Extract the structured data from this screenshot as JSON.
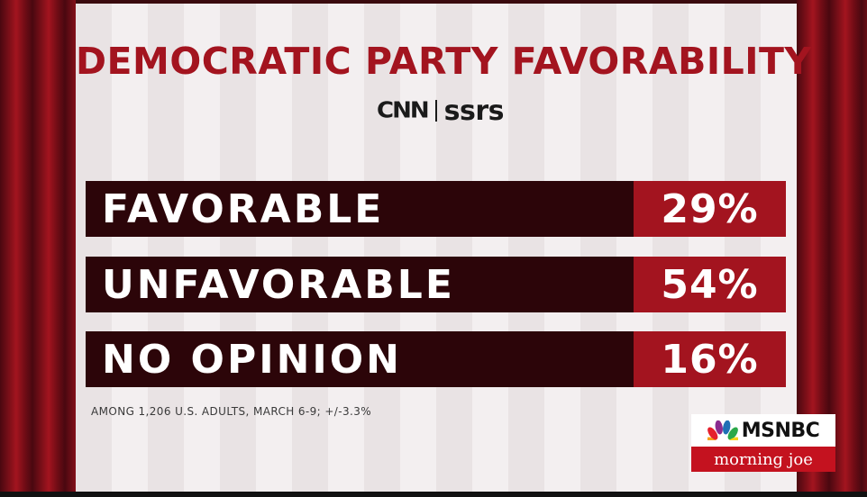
{
  "chart_data": {
    "type": "bar",
    "title": "DEMOCRATIC PARTY FAVORABILITY",
    "categories": [
      "FAVORABLE",
      "UNFAVORABLE",
      "NO OPINION"
    ],
    "values": [
      29,
      54,
      16
    ],
    "value_labels": [
      "29%",
      "54%",
      "16%"
    ],
    "footnote": "AMONG 1,206 U.S. ADULTS, MARCH 6-9; +/-3.3%"
  },
  "branding": {
    "poll_logo_left": "CNN",
    "poll_logo_right": "ssrs",
    "network_logo": "MSNBC",
    "show_name": "morning joe",
    "icons": [
      "peacock-icon"
    ]
  },
  "colors": {
    "accent_red": "#a3141f",
    "bar_dark": "#2c0509",
    "text_white": "#ffffff"
  }
}
